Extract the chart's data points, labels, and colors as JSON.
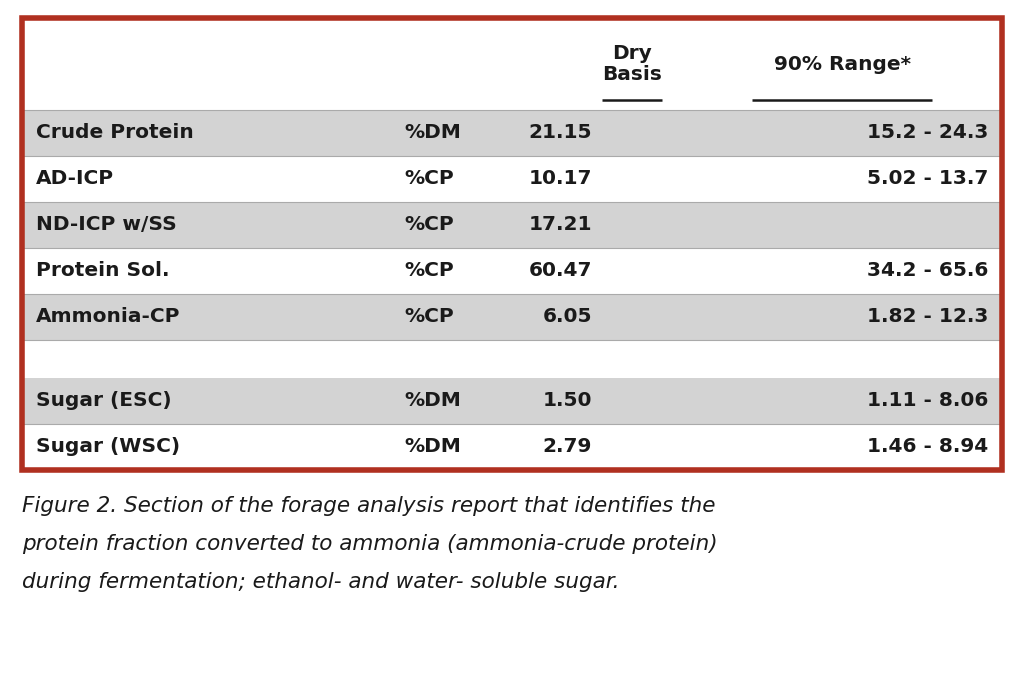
{
  "rows_group1": [
    {
      "label": "Crude Protein",
      "unit": "%DM",
      "dry_basis": "21.15",
      "range": "15.2 - 24.3",
      "shaded": true
    },
    {
      "label": "AD-ICP",
      "unit": "%CP",
      "dry_basis": "10.17",
      "range": "5.02 - 13.7",
      "shaded": false
    },
    {
      "label": "ND-ICP w/SS",
      "unit": "%CP",
      "dry_basis": "17.21",
      "range": "",
      "shaded": true
    },
    {
      "label": "Protein Sol.",
      "unit": "%CP",
      "dry_basis": "60.47",
      "range": "34.2 - 65.6",
      "shaded": false
    },
    {
      "label": "Ammonia-CP",
      "unit": "%CP",
      "dry_basis": "6.05",
      "range": "1.82 - 12.3",
      "shaded": true
    }
  ],
  "rows_group2": [
    {
      "label": "Sugar (ESC)",
      "unit": "%DM",
      "dry_basis": "1.50",
      "range": "1.11 - 8.06",
      "shaded": true
    },
    {
      "label": "Sugar (WSC)",
      "unit": "%DM",
      "dry_basis": "2.79",
      "range": "1.46 - 8.94",
      "shaded": false
    }
  ],
  "header_dry": "Dry\nBasis",
  "header_range": "90% Range*",
  "caption_line1": "Figure 2. Section of the forage analysis report that identifies the",
  "caption_line2": "protein fraction converted to ammonia (ammonia-crude protein)",
  "caption_line3": "during fermentation; ethanol- and water- soluble sugar.",
  "bg_color": "#ffffff",
  "shaded_color": "#d3d3d3",
  "border_color": "#b03020",
  "text_color": "#1a1a1a",
  "header_color": "#1a1a1a",
  "font_size": 14.5,
  "header_font_size": 14.5,
  "caption_font_size": 15.5,
  "border_lw": 4.0,
  "row_line_color": "#aaaaaa",
  "row_line_lw": 0.8
}
